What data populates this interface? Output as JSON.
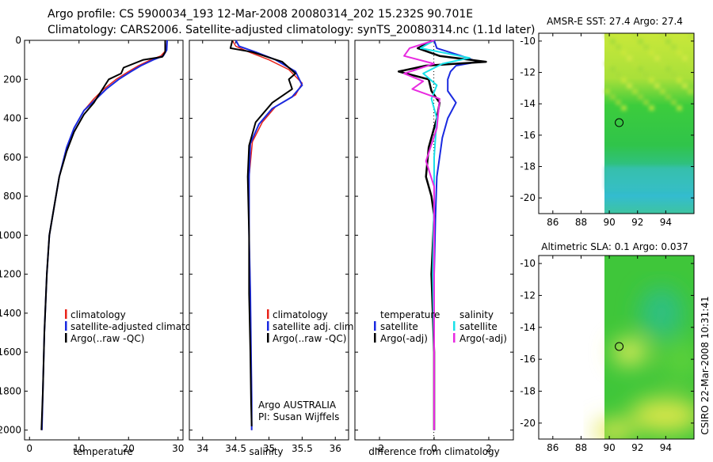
{
  "header": {
    "line1": "Argo profile: CS 5900034_193 12-Mar-2008 20080314_202 15.232S 90.701E",
    "line2": "Climatology: CARS2006. Satellite-adjusted climatology: synTS_20080314.nc (1.1d later)"
  },
  "side_stamp": "CSIRO 22-Mar-2008 10:31:41",
  "colors": {
    "climatology": "#e8231a",
    "satellite": "#1a2ae0",
    "argo": "#000000",
    "sat_salinity": "#19e0e8",
    "argo_adj_salinity": "#e82ae0"
  },
  "chart_data": [
    {
      "id": "temperature",
      "type": "line",
      "xlabel": "temperature",
      "ylabel": "",
      "xlim": [
        -1,
        31
      ],
      "ylim": [
        2050,
        0
      ],
      "xticks": [
        0,
        10,
        20,
        30
      ],
      "yticks": [
        0,
        200,
        400,
        600,
        800,
        1000,
        1200,
        1400,
        1600,
        1800,
        2000
      ],
      "legend": [
        "climatology",
        "satellite-adjusted climatology",
        "Argo(..raw -QC)"
      ],
      "annotations": [],
      "series": [
        {
          "name": "climatology",
          "color": "#e8231a",
          "width": 1.5,
          "x": [
            27.8,
            27.6,
            26.5,
            24.5,
            22.0,
            20.0,
            17.5,
            15.0,
            13.0,
            11.0,
            9.0,
            7.5,
            6.0,
            5.0,
            4.0,
            3.5,
            3.0,
            2.7,
            2.5
          ],
          "y": [
            0,
            50,
            80,
            100,
            130,
            160,
            200,
            250,
            300,
            360,
            450,
            550,
            700,
            850,
            1000,
            1200,
            1500,
            1800,
            2000
          ]
        },
        {
          "name": "satellite-adjusted climatology",
          "color": "#1a2ae0",
          "width": 2,
          "x": [
            27.8,
            27.7,
            27.0,
            25.0,
            22.5,
            20.5,
            18.0,
            15.5,
            13.5,
            11.0,
            9.0,
            7.5,
            6.0,
            5.0,
            4.0,
            3.5,
            3.0,
            2.7,
            2.5
          ],
          "y": [
            0,
            50,
            80,
            100,
            130,
            160,
            200,
            250,
            300,
            360,
            450,
            550,
            700,
            850,
            1000,
            1200,
            1500,
            1800,
            2000
          ]
        },
        {
          "name": "Argo(..raw -QC)",
          "color": "#000000",
          "width": 2,
          "x": [
            27.4,
            27.4,
            26.8,
            23.0,
            19.0,
            18.5,
            16.0,
            14.5,
            13.0,
            11.0,
            9.0,
            7.5,
            6.0,
            5.0,
            4.0,
            3.5,
            3.0,
            2.7,
            2.4
          ],
          "y": [
            0,
            60,
            85,
            100,
            140,
            170,
            200,
            260,
            320,
            380,
            470,
            570,
            700,
            850,
            1000,
            1200,
            1500,
            1800,
            2000
          ]
        }
      ]
    },
    {
      "id": "salinity",
      "type": "line",
      "xlabel": "salinity",
      "ylabel": "",
      "xlim": [
        33.8,
        36.2
      ],
      "ylim": [
        2050,
        0
      ],
      "xticks": [
        34,
        34.5,
        35,
        35.5,
        36
      ],
      "xticklabels": [
        "34",
        "34.5",
        "35",
        "35.5",
        "36"
      ],
      "yticks": [
        0,
        200,
        400,
        600,
        800,
        1000,
        1200,
        1400,
        1600,
        1800,
        2000
      ],
      "legend": [
        "climatology",
        "satellite adj. clim.",
        "Argo(..raw -QC)"
      ],
      "annotations": [
        "Argo AUSTRALIA",
        "PI: Susan Wijffels"
      ],
      "series": [
        {
          "name": "climatology",
          "color": "#e8231a",
          "width": 1.5,
          "x": [
            34.45,
            34.5,
            34.7,
            35.0,
            35.3,
            35.5,
            35.4,
            35.1,
            34.9,
            34.75,
            34.7,
            34.7,
            34.72,
            34.73,
            34.74,
            34.74
          ],
          "y": [
            0,
            30,
            60,
            100,
            150,
            220,
            280,
            340,
            420,
            520,
            700,
            1000,
            1300,
            1600,
            1850,
            2000
          ]
        },
        {
          "name": "satellite adj. clim.",
          "color": "#1a2ae0",
          "width": 2,
          "x": [
            34.5,
            34.55,
            34.8,
            35.1,
            35.4,
            35.5,
            35.35,
            35.05,
            34.85,
            34.72,
            34.7,
            34.7,
            34.72,
            34.73,
            34.74,
            34.74
          ],
          "y": [
            0,
            30,
            60,
            100,
            160,
            230,
            290,
            350,
            430,
            530,
            700,
            1000,
            1300,
            1600,
            1850,
            2000
          ]
        },
        {
          "name": "Argo(..raw -QC)",
          "color": "#000000",
          "width": 2,
          "x": [
            34.45,
            34.42,
            34.75,
            35.2,
            35.4,
            35.3,
            35.35,
            35.05,
            34.8,
            34.7,
            34.68,
            34.7,
            34.7,
            34.72,
            34.73,
            34.74
          ],
          "y": [
            0,
            40,
            60,
            110,
            170,
            200,
            250,
            320,
            420,
            540,
            700,
            1000,
            1300,
            1600,
            1850,
            1980
          ]
        }
      ]
    },
    {
      "id": "difference",
      "type": "line",
      "xlabel": "difference from climatology",
      "ylabel": "",
      "xlim": [
        -2.9,
        2.9
      ],
      "ylim": [
        2050,
        0
      ],
      "xticks": [
        -2,
        0,
        2
      ],
      "yticks": [
        0,
        200,
        400,
        600,
        800,
        1000,
        1200,
        1400,
        1600,
        1800,
        2000
      ],
      "legend_left_title": "temperature",
      "legend_right_title": "salinity",
      "legend": [
        "satellite",
        "Argo(-adj)",
        "satellite",
        "Argo(-adj)"
      ],
      "annotations": [],
      "series": [
        {
          "name": "temperature satellite",
          "color": "#1a2ae0",
          "width": 2,
          "x": [
            0.0,
            0.1,
            1.0,
            1.6,
            0.8,
            0.6,
            0.5,
            0.5,
            0.8,
            0.5,
            0.3,
            0.2,
            0.1,
            0.05,
            0.0,
            0.0,
            0.0
          ],
          "y": [
            0,
            40,
            80,
            110,
            130,
            160,
            200,
            260,
            320,
            400,
            500,
            600,
            700,
            900,
            1200,
            1600,
            2000
          ]
        },
        {
          "name": "temperature Argo(-adj)",
          "color": "#000000",
          "width": 2.5,
          "x": [
            0.0,
            -0.6,
            0.2,
            1.9,
            -0.3,
            -1.3,
            -0.2,
            -0.1,
            0.2,
            0.1,
            -0.2,
            -0.3,
            -0.1,
            0.0,
            -0.1,
            0.0,
            0.0
          ],
          "y": [
            0,
            40,
            80,
            110,
            130,
            160,
            200,
            260,
            320,
            400,
            550,
            700,
            800,
            900,
            1200,
            1600,
            2000
          ]
        },
        {
          "name": "salinity satellite",
          "color": "#19e0e8",
          "width": 2,
          "x": [
            0.0,
            -0.5,
            1.3,
            0.3,
            -0.4,
            0.1,
            -0.1,
            0.1,
            0.0,
            0.0,
            -0.05,
            0.0,
            0.0
          ],
          "y": [
            0,
            40,
            90,
            120,
            170,
            230,
            300,
            400,
            600,
            800,
            1200,
            1600,
            2000
          ]
        },
        {
          "name": "salinity Argo(-adj)",
          "color": "#e82ae0",
          "width": 2,
          "x": [
            0.0,
            -0.9,
            -1.1,
            0.0,
            -1.1,
            -0.4,
            -0.8,
            0.2,
            0.1,
            -0.3,
            0.0,
            0.0,
            0.0,
            0.0
          ],
          "y": [
            0,
            40,
            80,
            120,
            170,
            210,
            250,
            300,
            450,
            620,
            750,
            1000,
            1500,
            2000
          ]
        }
      ]
    },
    {
      "id": "amsre_sst",
      "type": "heatmap",
      "title": "AMSR-E SST: 27.4 Argo: 27.4",
      "xlim": [
        85,
        96
      ],
      "ylim": [
        -21,
        -9.5
      ],
      "xticks": [
        86,
        88,
        90,
        92,
        94
      ],
      "yticks": [
        -10,
        -12,
        -14,
        -16,
        -18,
        -20
      ],
      "data_xlim": [
        90,
        96
      ],
      "marker": {
        "lon": 90.7,
        "lat": -15.2
      }
    },
    {
      "id": "altimetric_sla",
      "type": "heatmap",
      "title": "Altimetric SLA: 0.1 Argo: 0.037",
      "xlim": [
        85,
        96
      ],
      "ylim": [
        -21,
        -9.5
      ],
      "xticks": [
        86,
        88,
        90,
        92,
        94
      ],
      "yticks": [
        -10,
        -12,
        -14,
        -16,
        -18,
        -20
      ],
      "data_xlim": [
        90,
        96
      ],
      "marker": {
        "lon": 90.7,
        "lat": -15.2
      }
    }
  ]
}
